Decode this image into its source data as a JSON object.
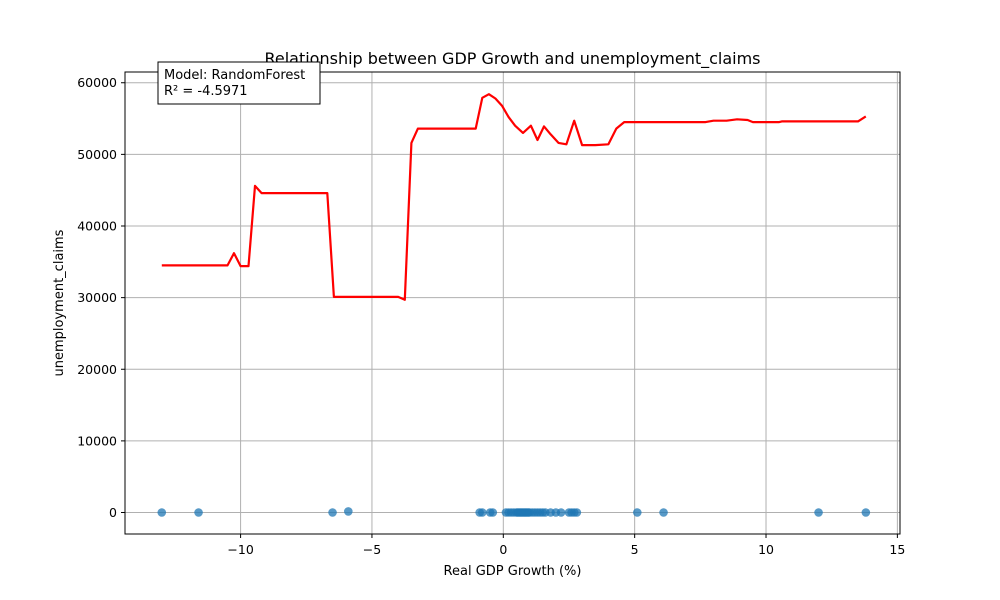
{
  "chart_data": {
    "type": "scatter",
    "title": "Relationship between GDP Growth and unemployment_claims",
    "xlabel": "Real GDP Growth (%)",
    "ylabel": "unemployment_claims",
    "xlim": [
      -14.4,
      15.1
    ],
    "ylim": [
      -3000,
      61500
    ],
    "xticks": [
      -10,
      -5,
      0,
      5,
      10,
      15
    ],
    "yticks": [
      0,
      10000,
      20000,
      30000,
      40000,
      50000,
      60000
    ],
    "xtick_labels": [
      "−10",
      "−5",
      "0",
      "5",
      "10",
      "15"
    ],
    "ytick_labels": [
      "0",
      "10000",
      "20000",
      "30000",
      "40000",
      "50000",
      "60000"
    ],
    "grid": true,
    "annotation": {
      "lines": [
        "Model: RandomForest",
        "R² = -4.5971"
      ],
      "placement": "top-left"
    },
    "colors": {
      "scatter": "#1f77b4",
      "fit_line": "#ff0000",
      "grid": "#b0b0b0"
    },
    "series": [
      {
        "kind": "scatter",
        "points": [
          [
            -13.0,
            0
          ],
          [
            -11.6,
            0
          ],
          [
            -6.5,
            0
          ],
          [
            -5.9,
            150
          ],
          [
            -0.9,
            0
          ],
          [
            -0.8,
            0
          ],
          [
            -0.5,
            0
          ],
          [
            -0.4,
            0
          ],
          [
            0.1,
            0
          ],
          [
            0.2,
            0
          ],
          [
            0.3,
            0
          ],
          [
            0.4,
            0
          ],
          [
            0.5,
            0
          ],
          [
            0.55,
            0
          ],
          [
            0.6,
            0
          ],
          [
            0.65,
            0
          ],
          [
            0.7,
            0
          ],
          [
            0.75,
            0
          ],
          [
            0.8,
            0
          ],
          [
            0.85,
            0
          ],
          [
            0.9,
            0
          ],
          [
            0.95,
            0
          ],
          [
            1.0,
            0
          ],
          [
            1.1,
            0
          ],
          [
            1.2,
            0
          ],
          [
            1.3,
            0
          ],
          [
            1.4,
            0
          ],
          [
            1.5,
            0
          ],
          [
            1.6,
            0
          ],
          [
            1.8,
            0
          ],
          [
            2.0,
            0
          ],
          [
            2.2,
            0
          ],
          [
            2.5,
            0
          ],
          [
            2.6,
            0
          ],
          [
            2.7,
            0
          ],
          [
            2.8,
            0
          ],
          [
            5.1,
            0
          ],
          [
            6.1,
            0
          ],
          [
            12.0,
            0
          ],
          [
            13.8,
            0
          ]
        ]
      },
      {
        "kind": "line",
        "points": [
          [
            -13.0,
            34500
          ],
          [
            -10.5,
            34500
          ],
          [
            -10.25,
            36200
          ],
          [
            -10.0,
            34400
          ],
          [
            -9.7,
            34400
          ],
          [
            -9.45,
            45600
          ],
          [
            -9.2,
            44600
          ],
          [
            -6.7,
            44600
          ],
          [
            -6.45,
            30100
          ],
          [
            -4.0,
            30100
          ],
          [
            -3.75,
            29700
          ],
          [
            -3.5,
            51600
          ],
          [
            -3.25,
            53600
          ],
          [
            -1.05,
            53600
          ],
          [
            -0.8,
            57900
          ],
          [
            -0.55,
            58400
          ],
          [
            -0.3,
            57800
          ],
          [
            -0.05,
            56800
          ],
          [
            0.2,
            55200
          ],
          [
            0.45,
            54000
          ],
          [
            0.75,
            53000
          ],
          [
            1.05,
            54000
          ],
          [
            1.3,
            52000
          ],
          [
            1.55,
            53900
          ],
          [
            1.8,
            52800
          ],
          [
            2.1,
            51600
          ],
          [
            2.4,
            51400
          ],
          [
            2.7,
            54700
          ],
          [
            3.0,
            51300
          ],
          [
            3.5,
            51300
          ],
          [
            4.0,
            51400
          ],
          [
            4.3,
            53600
          ],
          [
            4.6,
            54500
          ],
          [
            5.6,
            54500
          ],
          [
            7.7,
            54500
          ],
          [
            8.0,
            54700
          ],
          [
            8.5,
            54700
          ],
          [
            8.9,
            54900
          ],
          [
            9.3,
            54800
          ],
          [
            9.5,
            54500
          ],
          [
            10.5,
            54500
          ],
          [
            10.6,
            54600
          ],
          [
            12.4,
            54600
          ],
          [
            13.5,
            54600
          ],
          [
            13.8,
            55300
          ]
        ]
      }
    ]
  }
}
